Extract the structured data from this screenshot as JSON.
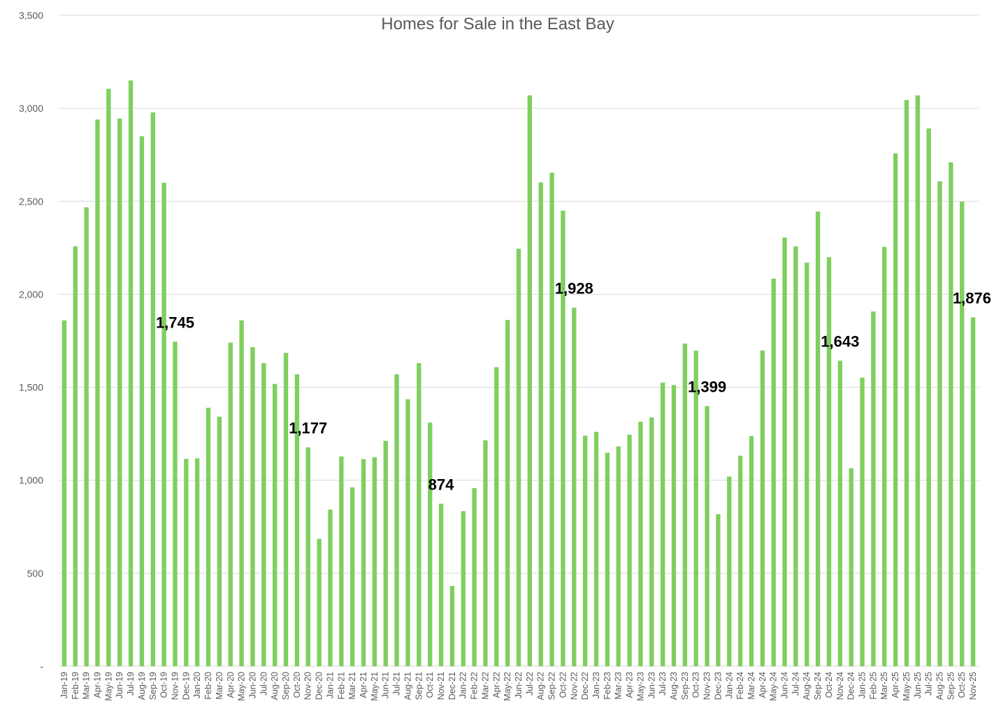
{
  "chart_data": {
    "type": "bar",
    "title": "Homes for Sale in the East Bay",
    "xlabel": "",
    "ylabel": "",
    "ylim": [
      0,
      3500
    ],
    "yticks": [
      0,
      500,
      1000,
      1500,
      2000,
      2500,
      3000,
      3500
    ],
    "ytick_labels": [
      "-",
      "500",
      "1,000",
      "1,500",
      "2,000",
      "2,500",
      "3,000",
      "3,500"
    ],
    "grid": true,
    "legend": "none",
    "bar_color": "#7fcf5f",
    "categories": [
      "Jan-19",
      "Feb-19",
      "Mar-19",
      "Apr-19",
      "May-19",
      "Jun-19",
      "Jul-19",
      "Aug-19",
      "Sep-19",
      "Oct-19",
      "Nov-19",
      "Dec-19",
      "Jan-20",
      "Feb-20",
      "Mar-20",
      "Apr-20",
      "May-20",
      "Jun-20",
      "Jul-20",
      "Aug-20",
      "Sep-20",
      "Oct-20",
      "Nov-20",
      "Dec-20",
      "Jan-21",
      "Feb-21",
      "Mar-21",
      "Apr-21",
      "May-21",
      "Jun-21",
      "Jul-21",
      "Aug-21",
      "Sep-21",
      "Oct-21",
      "Nov-21",
      "Dec-21",
      "Jan-22",
      "Feb-22",
      "Mar-22",
      "Apr-22",
      "May-22",
      "Jun-22",
      "Jul-22",
      "Aug-22",
      "Sep-22",
      "Oct-22",
      "Nov-22",
      "Dec-22",
      "Jan-23",
      "Feb-23",
      "Mar-23",
      "Apr-23",
      "May-23",
      "Jun-23",
      "Jul-23",
      "Aug-23",
      "Sep-23",
      "Oct-23",
      "Nov-23",
      "Dec-23",
      "Jan-24",
      "Feb-24",
      "Mar-24",
      "Apr-24",
      "May-24",
      "Jun-24",
      "Jul-24",
      "Aug-24",
      "Sep-24",
      "Oct-24",
      "Nov-24",
      "Dec-24",
      "Jan-25",
      "Feb-25",
      "Mar-25",
      "Apr-25",
      "May-25",
      "Jun-25",
      "Jul-25",
      "Aug-25",
      "Sep-25",
      "Oct-25",
      "Nov-25"
    ],
    "values": [
      1860,
      2258,
      2468,
      2940,
      3105,
      2945,
      3150,
      2850,
      2978,
      2600,
      1745,
      1115,
      1118,
      1390,
      1342,
      1740,
      1860,
      1716,
      1630,
      1518,
      1685,
      1570,
      1177,
      685,
      842,
      1128,
      962,
      1114,
      1124,
      1212,
      1570,
      1436,
      1630,
      1310,
      874,
      432,
      834,
      958,
      1215,
      1608,
      1862,
      2245,
      3070,
      2602,
      2654,
      2450,
      1928,
      1240,
      1260,
      1148,
      1182,
      1245,
      1315,
      1338,
      1525,
      1512,
      1735,
      1697,
      1399,
      818,
      1020,
      1132,
      1238,
      1698,
      2084,
      2305,
      2258,
      2170,
      2445,
      2200,
      1643,
      1065,
      1552,
      1908,
      2255,
      2758,
      3045,
      3070,
      2892,
      2608,
      2710,
      2498,
      1876
    ],
    "data_labels": [
      {
        "category": "Nov-19",
        "text": "1,745"
      },
      {
        "category": "Nov-20",
        "text": "1,177"
      },
      {
        "category": "Nov-21",
        "text": "874"
      },
      {
        "category": "Nov-22",
        "text": "1,928"
      },
      {
        "category": "Nov-23",
        "text": "1,399"
      },
      {
        "category": "Nov-24",
        "text": "1,643"
      },
      {
        "category": "Nov-25",
        "text": "1,876"
      }
    ]
  }
}
